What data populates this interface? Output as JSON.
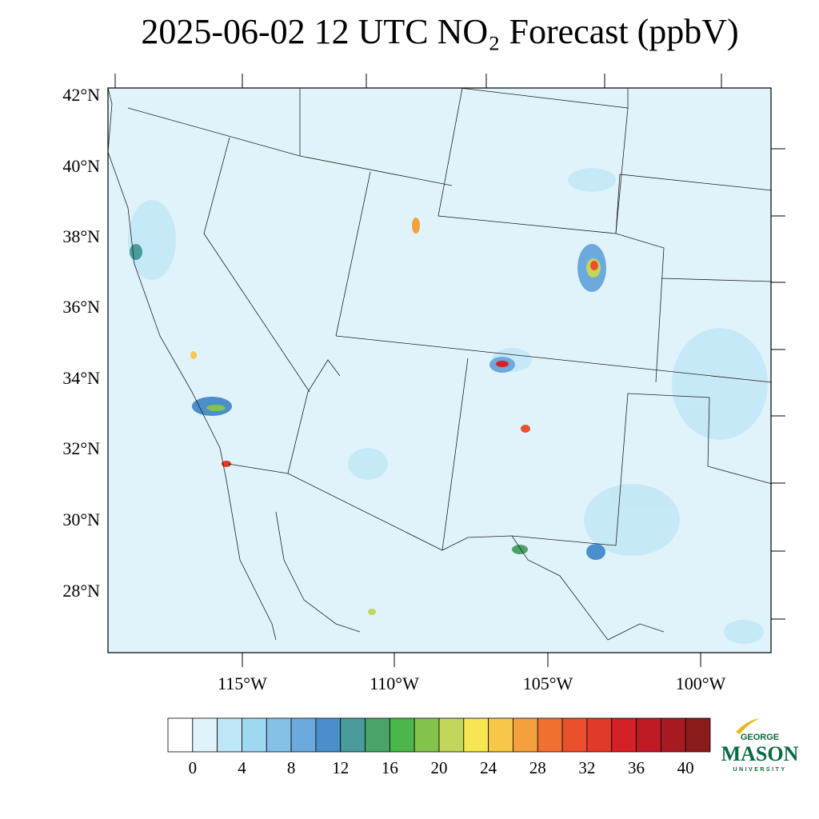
{
  "title": "2025-06-02 12 UTC NO₂ Forecast (ppbV)",
  "latitude_labels": [
    "42°N",
    "40°N",
    "38°N",
    "36°N",
    "34°N",
    "32°N",
    "30°N",
    "28°N"
  ],
  "longitude_labels": [
    "115°W",
    "110°W",
    "105°W",
    "100°W"
  ],
  "colorbar": {
    "levels": [
      0,
      2,
      4,
      6,
      8,
      10,
      12,
      14,
      16,
      18,
      20,
      22,
      24,
      26,
      28,
      30,
      32,
      34,
      36,
      38,
      40
    ],
    "ticks": [
      0,
      4,
      8,
      12,
      16,
      20,
      24,
      28,
      32,
      36,
      40
    ],
    "colors": [
      "#ffffff",
      "#e0f3fb",
      "#bfe6f7",
      "#a0d8f2",
      "#85c0e6",
      "#6ca9dd",
      "#4a8ecb",
      "#4a9b9b",
      "#4aa46a",
      "#4bb64a",
      "#84c34b",
      "#c1d65a",
      "#f7e654",
      "#f8c64a",
      "#f5a03c",
      "#f07030",
      "#e9502c",
      "#e03a2b",
      "#d42027",
      "#be1b25",
      "#a81a22",
      "#8b1a1a"
    ]
  },
  "logo": {
    "top": "GEORGE",
    "main": "MASON",
    "bottom": "UNIVERSITY"
  }
}
